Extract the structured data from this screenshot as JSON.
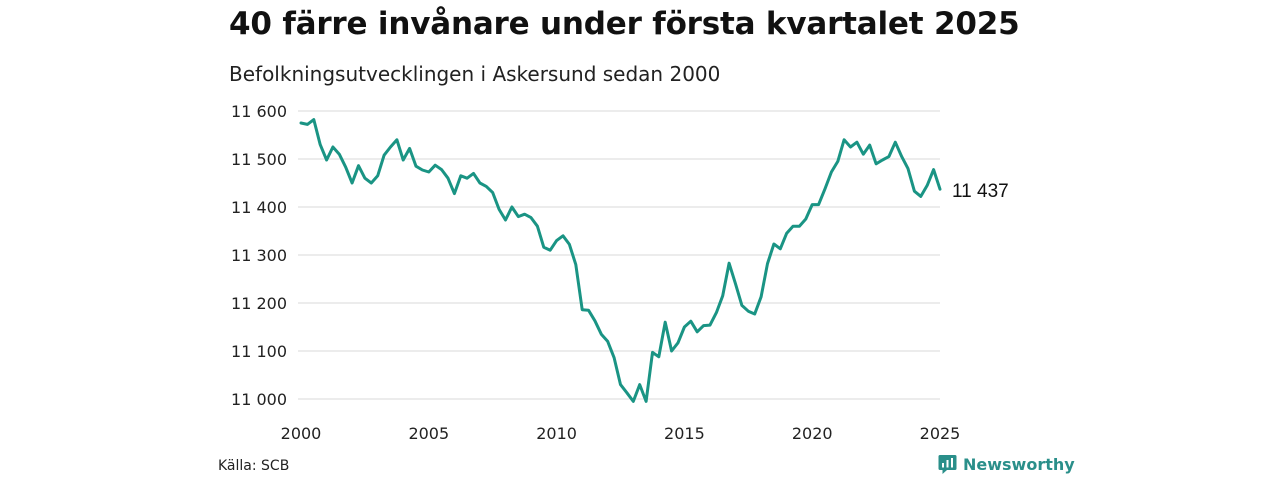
{
  "header": {
    "title": "40 färre invånare under första kvartalet 2025",
    "subtitle": "Befolkningsutvecklingen i Askersund sedan 2000"
  },
  "footer": {
    "source": "Källa: SCB",
    "brand": "Newsworthy"
  },
  "colors": {
    "line": "#1a9484",
    "grid": "#d9d9d9",
    "brand": "#2a8f8a"
  },
  "chart_data": {
    "type": "line",
    "title": "40 färre invånare under första kvartalet 2025",
    "subtitle": "Befolkningsutvecklingen i Askersund sedan 2000",
    "xlabel": "",
    "ylabel": "",
    "xlim": [
      2000,
      2025
    ],
    "ylim": [
      11000,
      11600
    ],
    "x_ticks": [
      {
        "value": 2000,
        "label": "2000"
      },
      {
        "value": 2005,
        "label": "2005"
      },
      {
        "value": 2010,
        "label": "2010"
      },
      {
        "value": 2015,
        "label": "2015"
      },
      {
        "value": 2020,
        "label": "2020"
      },
      {
        "value": 2025,
        "label": "2025"
      }
    ],
    "y_ticks": [
      {
        "value": 11000,
        "label": "11 000"
      },
      {
        "value": 11100,
        "label": "11 100"
      },
      {
        "value": 11200,
        "label": "11 200"
      },
      {
        "value": 11300,
        "label": "11 300"
      },
      {
        "value": 11400,
        "label": "11 400"
      },
      {
        "value": 11500,
        "label": "11 500"
      },
      {
        "value": 11600,
        "label": "11 600"
      }
    ],
    "grid": true,
    "end_label": "11 437",
    "series": [
      {
        "x": [
          2000.0,
          2000.25,
          2000.5,
          2000.75,
          2001.0,
          2001.25,
          2001.5,
          2001.75,
          2002.0,
          2002.25,
          2002.5,
          2002.75,
          2003.0,
          2003.25,
          2003.5,
          2003.75,
          2004.0,
          2004.25,
          2004.5,
          2004.75,
          2005.0,
          2005.25,
          2005.5,
          2005.75,
          2006.0,
          2006.25,
          2006.5,
          2006.75,
          2007.0,
          2007.25,
          2007.5,
          2007.75,
          2008.0,
          2008.25,
          2008.5,
          2008.75,
          2009.0,
          2009.25,
          2009.5,
          2009.75,
          2010.0,
          2010.25,
          2010.5,
          2010.75,
          2011.0,
          2011.25,
          2011.5,
          2011.75,
          2012.0,
          2012.25,
          2012.5,
          2012.75,
          2013.0,
          2013.25,
          2013.5,
          2013.75,
          2014.0,
          2014.25,
          2014.5,
          2014.75,
          2015.0,
          2015.25,
          2015.5,
          2015.75,
          2016.0,
          2016.25,
          2016.5,
          2016.75,
          2017.0,
          2017.25,
          2017.5,
          2017.75,
          2018.0,
          2018.25,
          2018.5,
          2018.75,
          2019.0,
          2019.25,
          2019.5,
          2019.75,
          2020.0,
          2020.25,
          2020.5,
          2020.75,
          2021.0,
          2021.25,
          2021.5,
          2021.75,
          2022.0,
          2022.25,
          2022.5,
          2022.75,
          2023.0,
          2023.25,
          2023.5,
          2023.75,
          2024.0,
          2024.25,
          2024.5,
          2024.75,
          2025.0
        ],
        "y": [
          11575,
          11572,
          11582,
          11530,
          11498,
          11525,
          11510,
          11483,
          11450,
          11486,
          11460,
          11450,
          11465,
          11508,
          11525,
          11540,
          11498,
          11522,
          11485,
          11477,
          11473,
          11487,
          11478,
          11460,
          11428,
          11465,
          11460,
          11470,
          11450,
          11443,
          11430,
          11395,
          11373,
          11400,
          11380,
          11385,
          11378,
          11360,
          11316,
          11310,
          11330,
          11340,
          11322,
          11280,
          11186,
          11185,
          11163,
          11135,
          11120,
          11086,
          11030,
          11013,
          10995,
          11030,
          10995,
          11097,
          11088,
          11160,
          11100,
          11117,
          11150,
          11162,
          11140,
          11153,
          11154,
          11180,
          11215,
          11283,
          11240,
          11195,
          11183,
          11177,
          11213,
          11282,
          11323,
          11313,
          11345,
          11360,
          11360,
          11375,
          11405,
          11405,
          11438,
          11473,
          11495,
          11540,
          11525,
          11535,
          11510,
          11529,
          11490,
          11498,
          11505,
          11535,
          11505,
          11480,
          11433,
          11422,
          11445,
          11478,
          11437
        ]
      }
    ]
  }
}
